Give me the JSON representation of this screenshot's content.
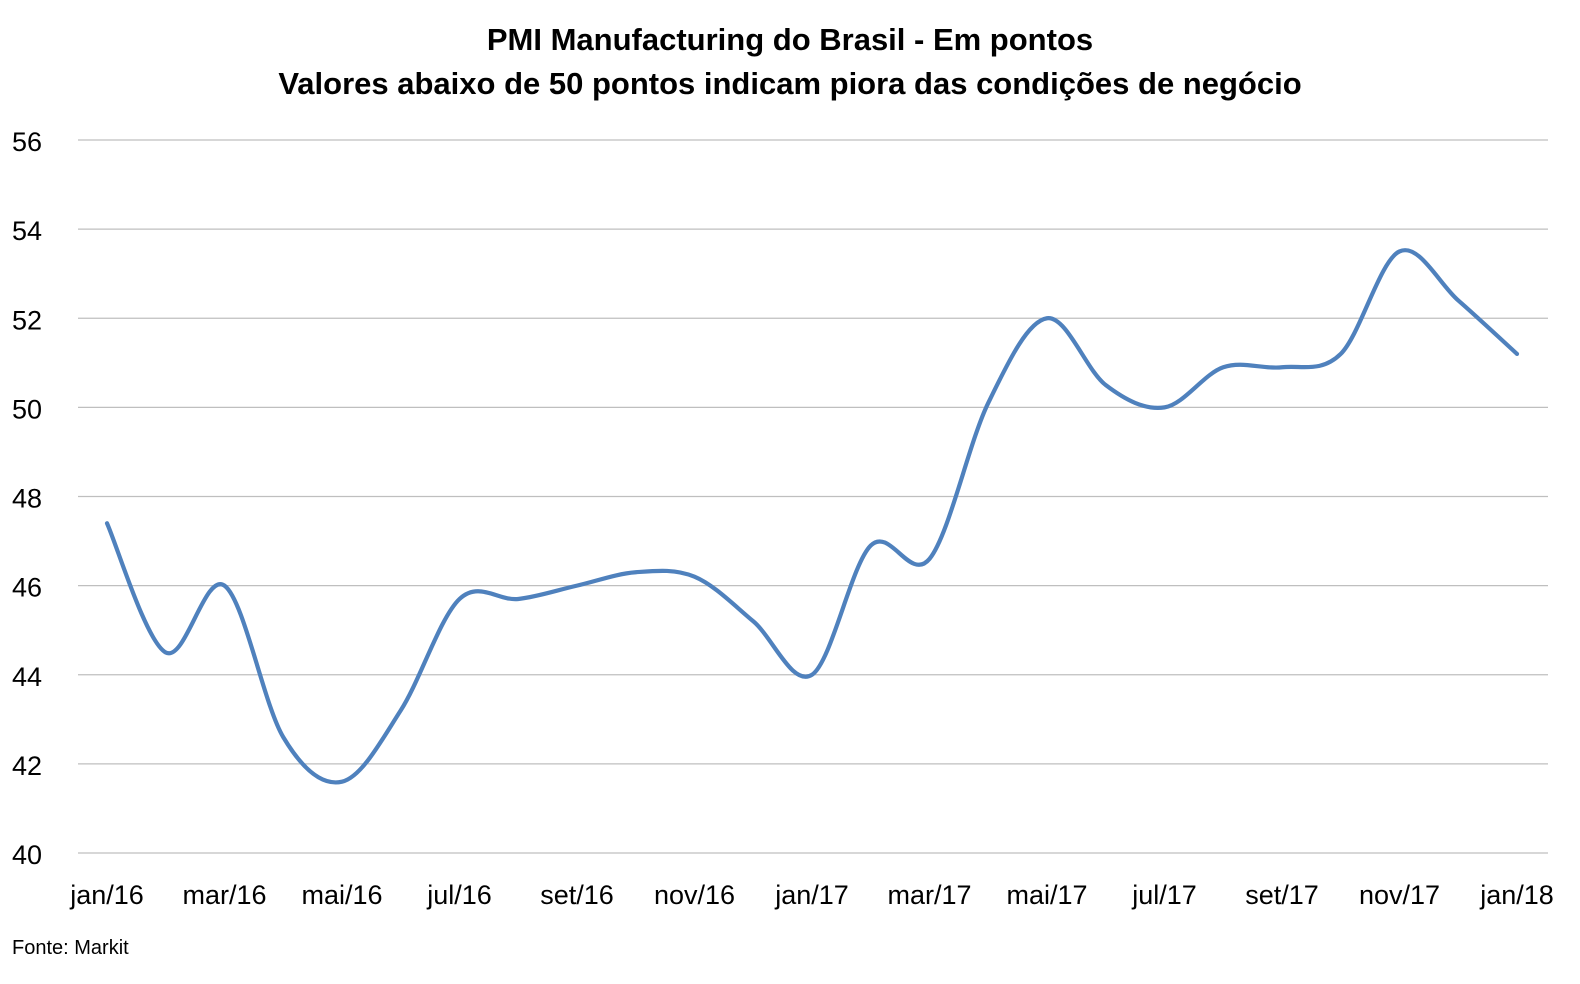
{
  "chart_data": {
    "type": "line",
    "title": "PMI Manufacturing do Brasil - Em pontos",
    "subtitle": "Valores abaixo de 50 pontos indicam piora das condições de negócio",
    "xlabel": "",
    "ylabel": "",
    "ylim": [
      40,
      56
    ],
    "yticks": [
      "40",
      "42",
      "44",
      "46",
      "48",
      "50",
      "52",
      "54",
      "56"
    ],
    "categories": [
      "jan/16",
      "fev/16",
      "mar/16",
      "abr/16",
      "mai/16",
      "jun/16",
      "jul/16",
      "ago/16",
      "set/16",
      "out/16",
      "nov/16",
      "dez/16",
      "jan/17",
      "fev/17",
      "mar/17",
      "abr/17",
      "mai/17",
      "jun/17",
      "jul/17",
      "ago/17",
      "set/17",
      "out/17",
      "nov/17",
      "dez/17",
      "jan/18"
    ],
    "x_tick_labels": [
      "jan/16",
      "mar/16",
      "mai/16",
      "jul/16",
      "set/16",
      "nov/16",
      "jan/17",
      "mar/17",
      "mai/17",
      "jul/17",
      "set/17",
      "nov/17",
      "jan/18"
    ],
    "series": [
      {
        "values": [
          47.4,
          44.5,
          46.0,
          42.6,
          41.6,
          43.2,
          45.7,
          45.7,
          46.0,
          46.3,
          46.2,
          45.2,
          44.0,
          46.9,
          46.6,
          50.1,
          52.0,
          50.5,
          50.0,
          50.9,
          50.9,
          51.2,
          53.5,
          52.4,
          51.2
        ],
        "color": "#4f81bd"
      }
    ],
    "grid": true,
    "grid_color": "#bfbfbf",
    "legend": "none"
  },
  "source": "Fonte: Markit"
}
